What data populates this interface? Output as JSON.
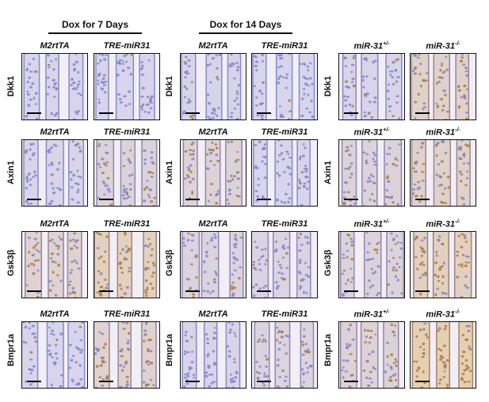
{
  "group_headers": [
    "Dox for 7 Days",
    "Dox for 14 Days"
  ],
  "rows": [
    "Dkk1",
    "Axin1",
    "Gsk3β",
    "Bmpr1a"
  ],
  "col_labels": {
    "m2": "M2rtTA",
    "tre": "TRE-miR31",
    "het_base": "miR-31",
    "het_sup": "+/-",
    "ko_base": "miR-31",
    "ko_sup": "-/-"
  },
  "stain_colors": {
    "hematoxylin": "#7f86cf",
    "dab_brown": "#b07a3a",
    "background": "#f2eef6"
  }
}
